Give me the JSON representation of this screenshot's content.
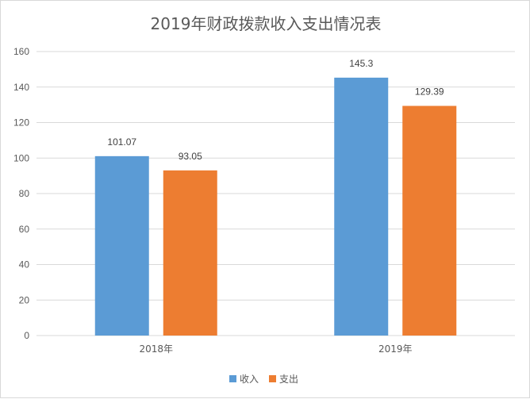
{
  "chart_data": {
    "type": "bar",
    "title": "2019年财政拨款收入支出情况表",
    "categories": [
      "2018年",
      "2019年"
    ],
    "series": [
      {
        "name": "收入",
        "values": [
          101.07,
          145.3
        ],
        "labels": [
          "101.07",
          "145.3"
        ],
        "color": "#5b9bd5"
      },
      {
        "name": "支出",
        "values": [
          93.05,
          129.39
        ],
        "labels": [
          "93.05",
          "129.39"
        ],
        "color": "#ed7d31"
      }
    ],
    "ylim": [
      0,
      160
    ],
    "yticks": [
      "0",
      "20",
      "40",
      "60",
      "80",
      "100",
      "120",
      "140",
      "160"
    ],
    "grid": true,
    "legend": "bottom",
    "xlabel": "",
    "ylabel": ""
  }
}
